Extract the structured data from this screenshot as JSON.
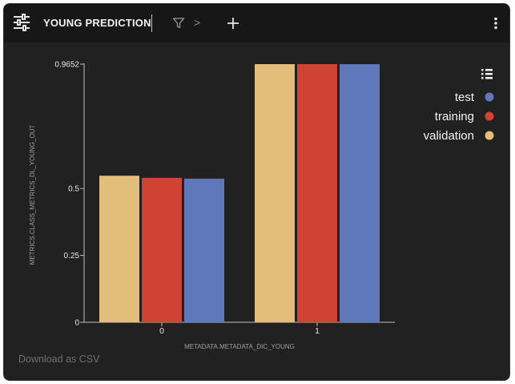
{
  "header": {
    "title": "YOUNG PREDICTION",
    "chevron": ">"
  },
  "footer": {
    "download_label": "Download as CSV"
  },
  "chart_data": {
    "type": "bar",
    "categories": [
      "0",
      "1"
    ],
    "series": [
      {
        "name": "validation",
        "color": "#e3be7b",
        "values": [
          0.548,
          0.9652
        ]
      },
      {
        "name": "training",
        "color": "#d04232",
        "values": [
          0.54,
          0.9652
        ]
      },
      {
        "name": "test",
        "color": "#5e78b9",
        "values": [
          0.537,
          0.9652
        ]
      }
    ],
    "yticks": [
      "0",
      "0.25",
      "0.5",
      "0.9652"
    ],
    "ylim": [
      0,
      0.9652
    ],
    "xlabel": "METADATA.METADATA_DIC_YOUNG",
    "ylabel": "METRICS.CLASS_METRICS_DL_YOUNG_OUT",
    "legend": [
      "test",
      "training",
      "validation"
    ],
    "legend_position": "top-right",
    "grid": false
  }
}
